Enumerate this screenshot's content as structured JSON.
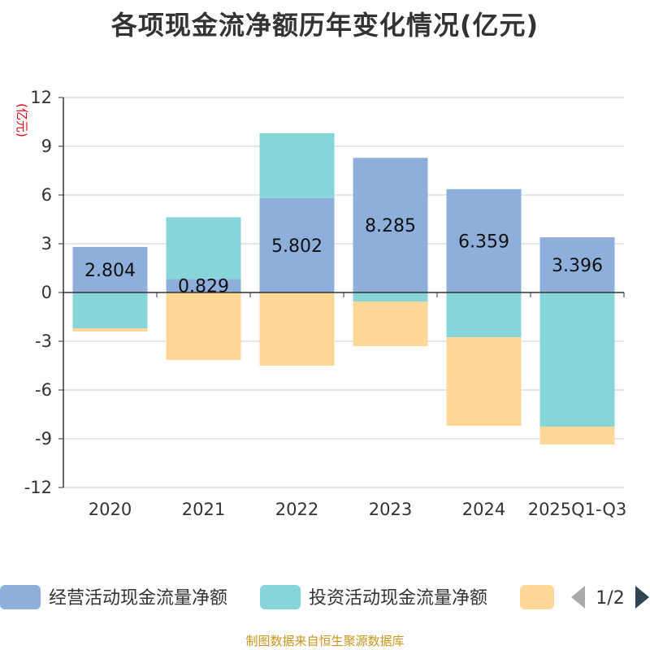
{
  "chart_data": {
    "type": "bar",
    "stacked": true,
    "title": "各项现金流净额历年变化情况(亿元)",
    "ylabel": "(亿元)",
    "xlabel": "",
    "categories": [
      "2020",
      "2021",
      "2022",
      "2023",
      "2024",
      "2025Q1-Q3"
    ],
    "ylim": [
      -12,
      12
    ],
    "yticks": [
      12,
      9,
      6,
      3,
      0,
      -3,
      -6,
      -9,
      -12
    ],
    "grid": true,
    "series": [
      {
        "name": "经营活动现金流量净额",
        "color": "#8eaedb",
        "values": [
          2.804,
          0.829,
          5.802,
          8.285,
          6.359,
          3.396
        ],
        "labels": [
          "2.804",
          "0.829",
          "5.802",
          "8.285",
          "6.359",
          "3.396"
        ]
      },
      {
        "name": "投资活动现金流量净额",
        "color": "#86d5d8",
        "values": [
          -2.2,
          3.8,
          4.0,
          -0.55,
          -2.75,
          -8.25
        ]
      },
      {
        "name": "",
        "color": "#ffd898",
        "values": [
          -0.2,
          -4.15,
          -4.5,
          -2.75,
          -5.45,
          -1.1
        ]
      }
    ],
    "legend": {
      "position": "bottom",
      "page": "1/2"
    },
    "source": "制图数据来自恒生聚源数据库"
  }
}
